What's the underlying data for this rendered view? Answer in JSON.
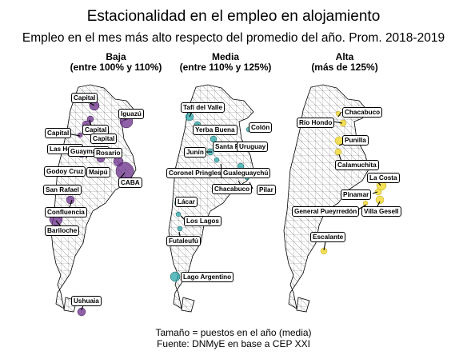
{
  "title": "Estacionalidad en el empleo en alojamiento",
  "subtitle": "Empleo en el mes más alto respecto del promedio del año. Prom. 2018-2019",
  "colors": {
    "baja": "#6a2c8a",
    "media": "#2aa5a8",
    "alta": "#f2dc3b"
  },
  "panels": [
    {
      "title": "Baja",
      "range": "(entre 100% y 110%)",
      "labels": [
        "Capital",
        "Iguazú",
        "Capital",
        "Capital",
        "Capital",
        "Las Heras",
        "Guaymallén",
        "Rosario",
        "Godoy Cruz",
        "Maipú",
        "CABA",
        "San Rafael",
        "Confluencia",
        "Bariloche",
        "Ushuaia"
      ]
    },
    {
      "title": "Media",
      "range": "(entre 110% y 125%)",
      "labels": [
        "Tafí del Valle",
        "Yerba Buena",
        "Colón",
        "Santa Fe",
        "Junín",
        "Uruguay",
        "Coronel Pringles",
        "Gualeguaychú",
        "Chacabuco",
        "Pilar",
        "Lácar",
        "Los Lagos",
        "Futaleufú",
        "Lago Argentino"
      ]
    },
    {
      "title": "Alta",
      "range": "(más de 125%)",
      "labels": [
        "Chacabuco",
        "Río Hondo",
        "Punilla",
        "Calamuchita",
        "La Costa",
        "Pinamar",
        "General Pueyrredón",
        "Villa Gesell",
        "Escalante"
      ]
    }
  ],
  "footer": {
    "line1": "Tamaño = puestos en el año (media)",
    "line2": "Fuente: DNMyE en base a CEP XXI"
  }
}
